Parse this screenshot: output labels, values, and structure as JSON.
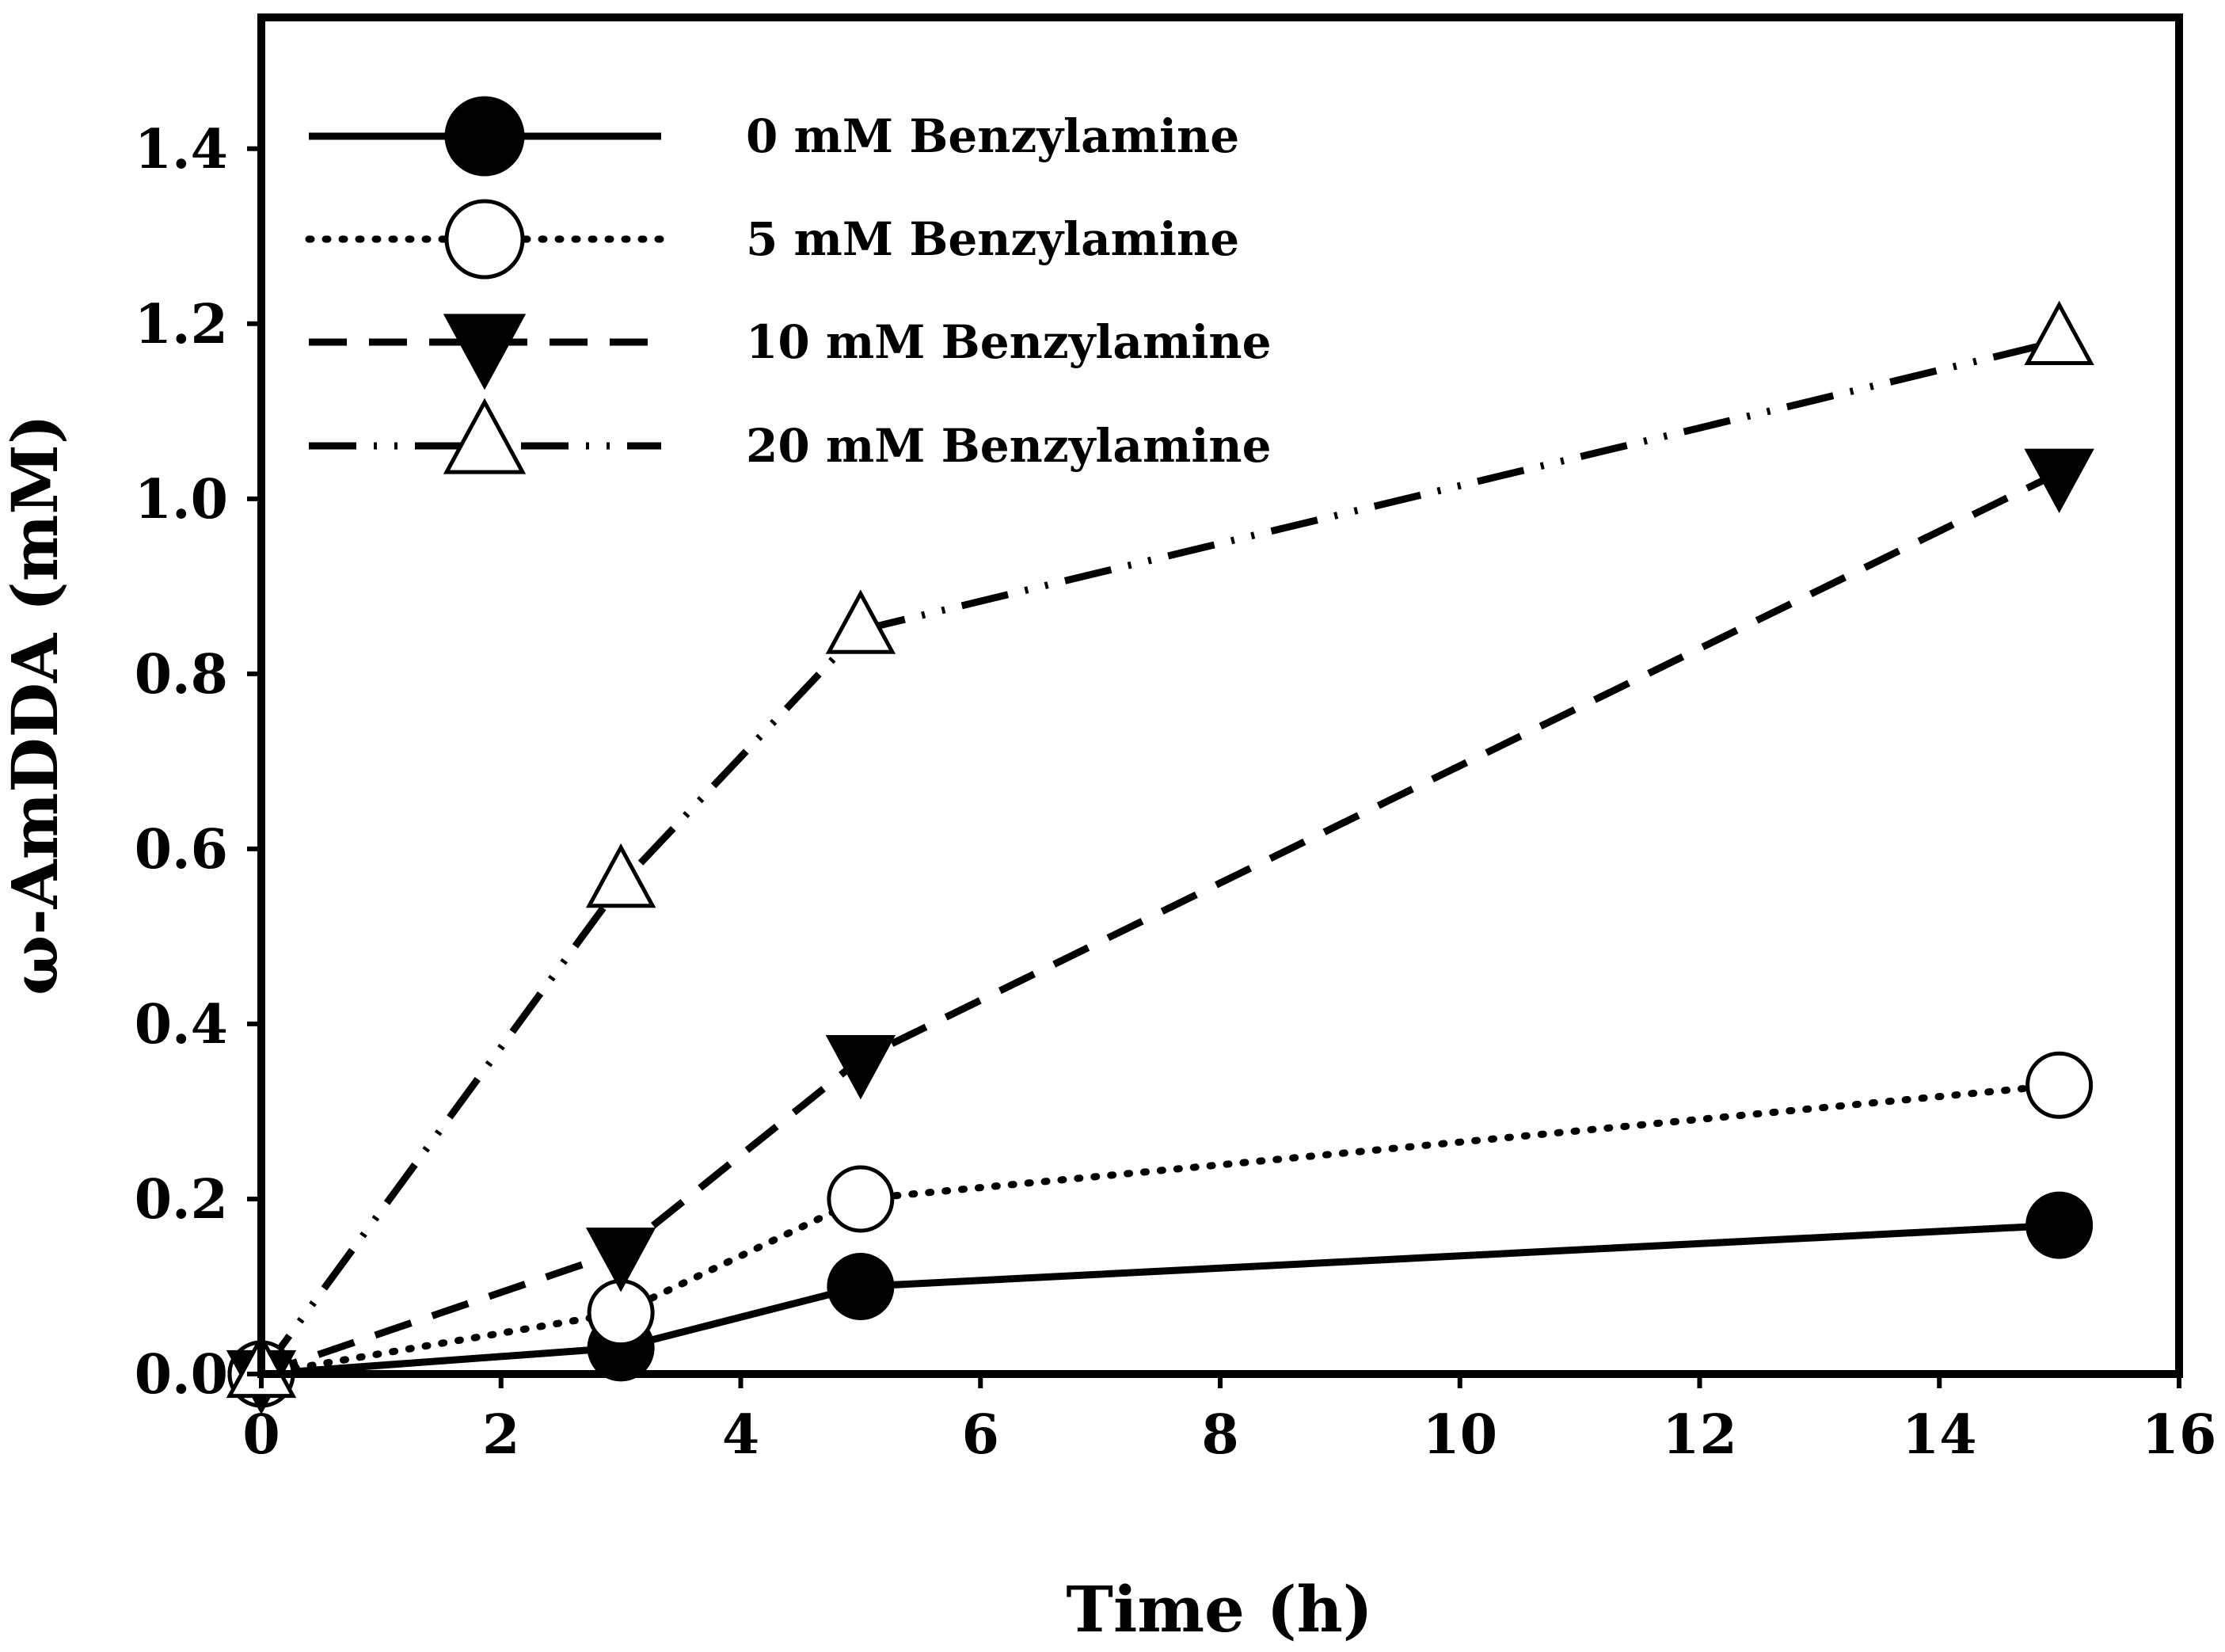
{
  "chart_data": {
    "type": "line",
    "title": "",
    "xlabel": "Time (h)",
    "ylabel": "ω-AmDDA (mM)",
    "xlim": [
      0,
      16
    ],
    "ylim": [
      0,
      1.55
    ],
    "xticks": [
      "0",
      "2",
      "4",
      "6",
      "8",
      "10",
      "12",
      "14",
      "16"
    ],
    "yticks": [
      "0.0",
      "0.2",
      "0.4",
      "0.6",
      "0.8",
      "1.0",
      "1.2",
      "1.4"
    ],
    "legend_position": "top-left",
    "x": [
      0,
      3,
      5,
      15
    ],
    "series": [
      {
        "name": "0 mM Benzylamine",
        "values": [
          0.0,
          0.03,
          0.1,
          0.17
        ],
        "marker": "filled-circle",
        "line": "solid"
      },
      {
        "name": "5 mM Benzylamine",
        "values": [
          0.0,
          0.07,
          0.2,
          0.33
        ],
        "marker": "open-circle",
        "line": "dotted"
      },
      {
        "name": "10 mM Benzylamine",
        "values": [
          0.0,
          0.14,
          0.36,
          1.03
        ],
        "marker": "filled-triangle-down",
        "line": "dashed"
      },
      {
        "name": "20 mM Benzylamine",
        "values": [
          0.0,
          0.56,
          0.85,
          1.18
        ],
        "marker": "open-triangle-up",
        "line": "dash-dot-dot"
      }
    ]
  }
}
